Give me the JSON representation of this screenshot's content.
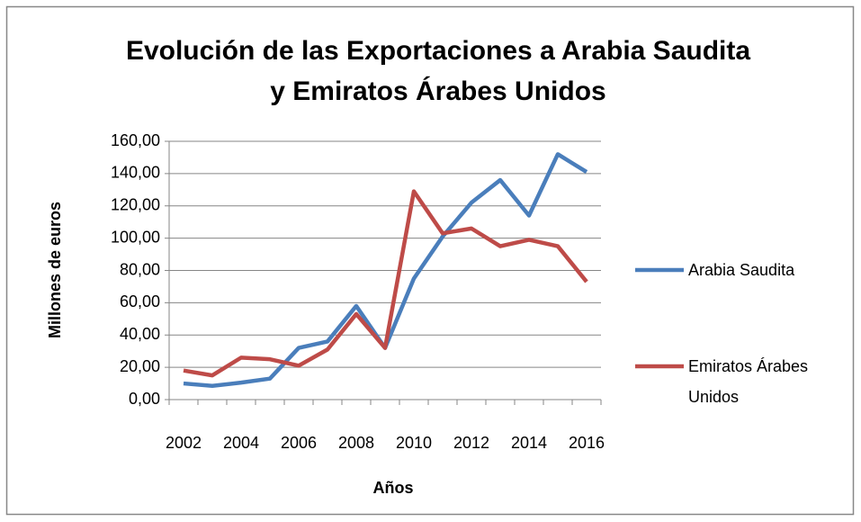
{
  "chart_data": {
    "type": "line",
    "title": [
      "Evolución de las Exportaciones a Arabia Saudita",
      "y Emiratos Árabes Unidos"
    ],
    "x_label": "Años",
    "y_label": "Millones de euros",
    "categories": [
      "2002",
      null,
      "2004",
      null,
      "2006",
      null,
      "2008",
      null,
      "2010",
      null,
      "2012",
      null,
      "2014",
      null,
      "2016"
    ],
    "series": [
      {
        "name": "Arabia Saudita",
        "color": "#4a7ebb",
        "values": [
          10,
          8.5,
          10.5,
          13,
          32,
          36,
          58,
          32,
          75,
          101,
          122,
          136,
          114,
          152,
          141
        ]
      },
      {
        "name": "Emiratos Árabes Unidos",
        "color": "#be4b48",
        "values": [
          18,
          15,
          26,
          25,
          21,
          31,
          53,
          32,
          129,
          103,
          106,
          95,
          99,
          95,
          73
        ]
      }
    ],
    "ylim": [
      0,
      160
    ],
    "yticks": [
      {
        "value": 0,
        "label": "0,00"
      },
      {
        "value": 20,
        "label": "20,00"
      },
      {
        "value": 40,
        "label": "40,00"
      },
      {
        "value": 60,
        "label": "60,00"
      },
      {
        "value": 80,
        "label": "80,00"
      },
      {
        "value": 100,
        "label": "100,00"
      },
      {
        "value": 120,
        "label": "120,00"
      },
      {
        "value": 140,
        "label": "140,00"
      },
      {
        "value": 160,
        "label": "160,00"
      }
    ],
    "grid": true,
    "legend": "right"
  }
}
